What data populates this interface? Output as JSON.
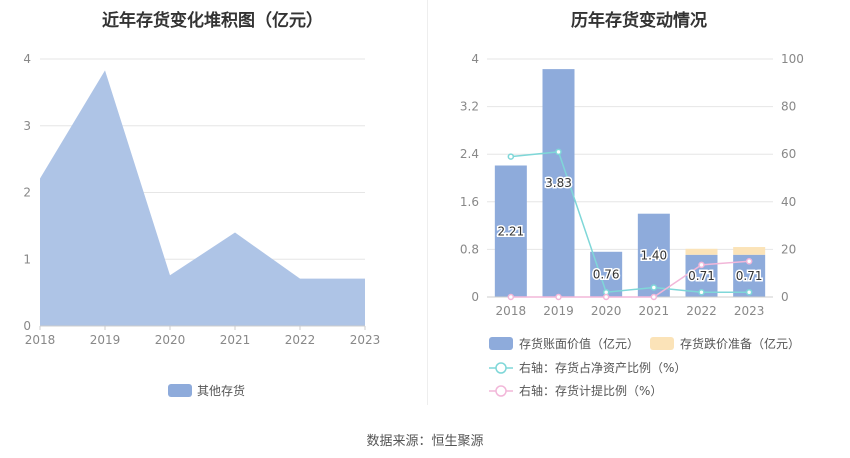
{
  "source": "数据来源：恒生聚源",
  "chart_data": [
    {
      "type": "area",
      "title": "近年存货变化堆积图（亿元）",
      "x": [
        "2018",
        "2019",
        "2020",
        "2021",
        "2022",
        "2023"
      ],
      "ylim": [
        0,
        4
      ],
      "yticks": [
        "0",
        "1",
        "2",
        "3",
        "4"
      ],
      "series": [
        {
          "name": "其他存货",
          "values": [
            2.21,
            3.83,
            0.76,
            1.4,
            0.71,
            0.71
          ],
          "color": "#aec4e6",
          "legend_color": "#8eabdb"
        }
      ],
      "legend": "bottom"
    },
    {
      "type": "bar",
      "title": "历年存货变动情况",
      "categories": [
        "2018",
        "2019",
        "2020",
        "2021",
        "2022",
        "2023"
      ],
      "ylim": [
        0,
        4
      ],
      "yticks": [
        "0",
        "0.8",
        "1.6",
        "2.4",
        "3.2",
        "4"
      ],
      "y2lim": [
        0,
        100
      ],
      "y2ticks": [
        "0",
        "20",
        "40",
        "60",
        "80",
        "100"
      ],
      "bar_series": [
        {
          "name": "存货账面价值（亿元）",
          "values": [
            2.21,
            3.83,
            0.76,
            1.4,
            0.71,
            0.71
          ],
          "labels": [
            "2.21",
            "3.83",
            "0.76",
            "1.40",
            "0.71",
            "0.71"
          ],
          "color": "#8eabdb"
        },
        {
          "name": "存货跌价准备（亿元）",
          "values": [
            0,
            0,
            0,
            0,
            0.1,
            0.13
          ],
          "color": "#fbe3b8"
        }
      ],
      "line_series": [
        {
          "name": "右轴：存货占净资产比例（%）",
          "values": [
            59,
            61,
            2,
            4,
            2,
            2
          ],
          "color": "#7fd7d8"
        },
        {
          "name": "右轴：存货计提比例（%）",
          "values": [
            0,
            0,
            0,
            0,
            13.5,
            15
          ],
          "color": "#f2b7d9"
        }
      ],
      "legend": "bottom"
    }
  ]
}
